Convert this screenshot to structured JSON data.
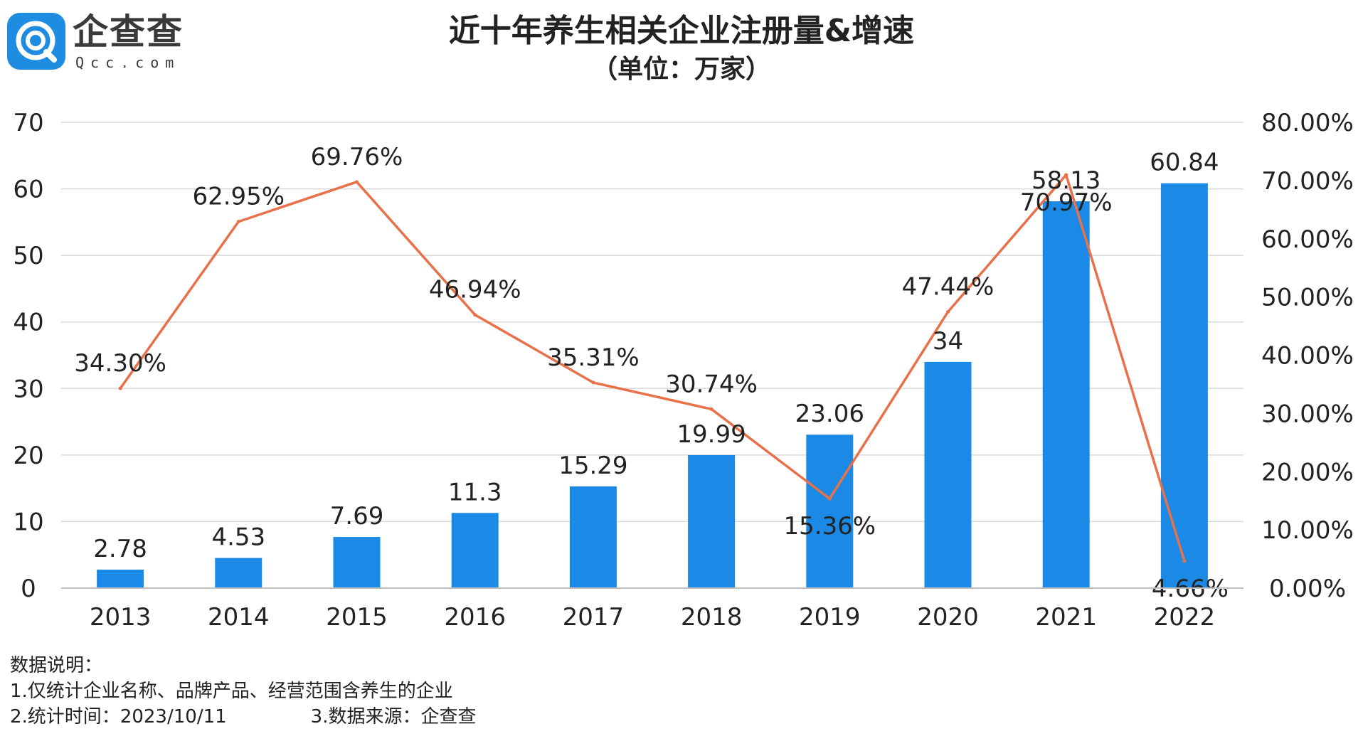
{
  "logo": {
    "name": "企查查",
    "sub": "Qcc.com",
    "icon": "qcc-logo-icon",
    "color": "#1e8ce0"
  },
  "colors": {
    "bar": "#1a8ae6",
    "line": "#e8714a",
    "grid": "#d9d9d9",
    "text": "#222222"
  },
  "chart_data": {
    "type": "bar+line",
    "title": "近十年养生相关企业注册量&增速",
    "subtitle": "（单位：万家）",
    "categories": [
      "2013",
      "2014",
      "2015",
      "2016",
      "2017",
      "2018",
      "2019",
      "2020",
      "2021",
      "2022"
    ],
    "bar_values": [
      2.78,
      4.53,
      7.69,
      11.3,
      15.29,
      19.99,
      23.06,
      34,
      58.13,
      60.84
    ],
    "bar_labels": [
      "2.78",
      "4.53",
      "7.69",
      "11.3",
      "15.29",
      "19.99",
      "23.06",
      "34",
      "58.13",
      "60.84"
    ],
    "line_values": [
      34.3,
      62.95,
      69.76,
      46.94,
      35.31,
      30.74,
      15.36,
      47.44,
      70.97,
      4.66
    ],
    "line_labels": [
      "34.30%",
      "62.95%",
      "69.76%",
      "46.94%",
      "35.31%",
      "30.74%",
      "15.36%",
      "47.44%",
      "70.97%",
      "4.66%"
    ],
    "y_left": {
      "min": 0,
      "max": 70,
      "ticks": [
        "0",
        "10",
        "20",
        "30",
        "40",
        "50",
        "60",
        "70"
      ]
    },
    "y_right": {
      "min": 0,
      "max": 80,
      "ticks": [
        "0.00%",
        "10.00%",
        "20.00%",
        "30.00%",
        "40.00%",
        "50.00%",
        "60.00%",
        "70.00%",
        "80.00%"
      ]
    },
    "grid": true,
    "legend": "none"
  },
  "notes": {
    "heading": "数据说明：",
    "line1": "1.仅统计企业名称、品牌产品、经营范围含养生的企业",
    "line2": "2.统计时间：2023/10/11",
    "line3": "3.数据来源：企查查"
  }
}
